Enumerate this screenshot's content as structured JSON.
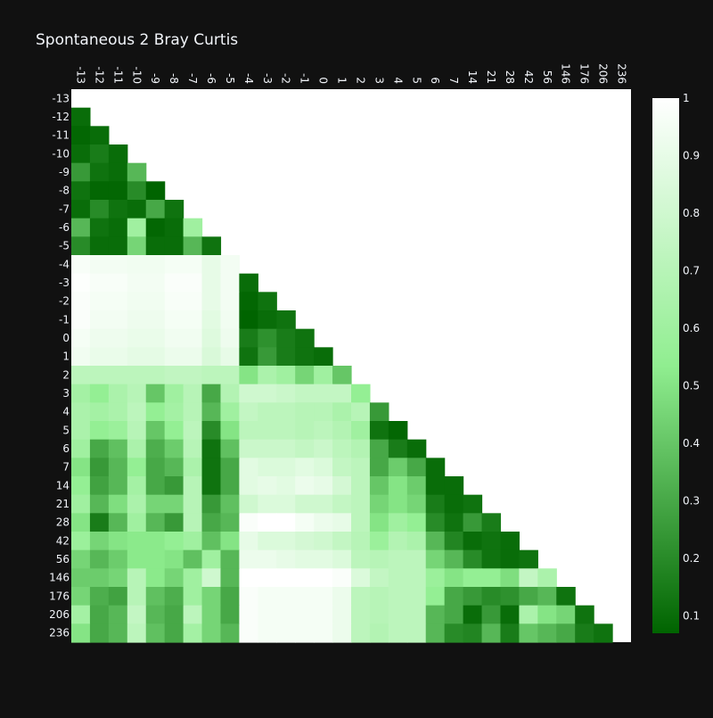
{
  "chart_data": {
    "type": "heatmap",
    "title": "Spontaneous 2 Bray Curtis",
    "labels": [
      "-13",
      "-12",
      "-11",
      "-10",
      "-9",
      "-8",
      "-7",
      "-6",
      "-5",
      "-4",
      "-3",
      "-2",
      "-1",
      "0",
      "1",
      "2",
      "3",
      "4",
      "5",
      "6",
      "7",
      "14",
      "21",
      "28",
      "42",
      "56",
      "146",
      "176",
      "206",
      "236"
    ],
    "colorscale": {
      "min": 0.07,
      "max": 1,
      "stops": [
        [
          0,
          "#006400"
        ],
        [
          0.5,
          "#90EE90"
        ],
        [
          1,
          "#FFFFFF"
        ]
      ],
      "ticks": [
        0.1,
        0.2,
        0.3,
        0.4,
        0.5,
        0.6,
        0.7,
        0.8,
        0.9,
        1
      ]
    },
    "rows": [
      [],
      [
        0.1
      ],
      [
        0.08,
        0.1
      ],
      [
        0.1,
        0.15,
        0.1
      ],
      [
        0.25,
        0.12,
        0.1,
        0.35
      ],
      [
        0.12,
        0.08,
        0.08,
        0.2,
        0.07
      ],
      [
        0.1,
        0.2,
        0.12,
        0.1,
        0.3,
        0.12
      ],
      [
        0.35,
        0.12,
        0.1,
        0.6,
        0.08,
        0.1,
        0.6
      ],
      [
        0.2,
        0.1,
        0.1,
        0.45,
        0.1,
        0.1,
        0.35,
        0.12
      ],
      [
        0.97,
        0.95,
        0.95,
        0.94,
        0.94,
        0.96,
        0.96,
        0.9,
        0.95
      ],
      [
        0.99,
        0.97,
        0.97,
        0.95,
        0.95,
        0.98,
        0.98,
        0.9,
        0.95,
        0.1
      ],
      [
        0.98,
        0.96,
        0.96,
        0.94,
        0.94,
        0.97,
        0.97,
        0.9,
        0.95,
        0.08,
        0.12
      ],
      [
        0.98,
        0.95,
        0.95,
        0.93,
        0.93,
        0.96,
        0.96,
        0.88,
        0.94,
        0.07,
        0.1,
        0.12
      ],
      [
        0.96,
        0.93,
        0.93,
        0.91,
        0.91,
        0.94,
        0.94,
        0.86,
        0.93,
        0.15,
        0.22,
        0.15,
        0.12
      ],
      [
        0.94,
        0.91,
        0.91,
        0.89,
        0.89,
        0.92,
        0.92,
        0.84,
        0.9,
        0.12,
        0.25,
        0.15,
        0.12,
        0.1
      ],
      [
        0.72,
        0.72,
        0.72,
        0.72,
        0.72,
        0.74,
        0.74,
        0.72,
        0.72,
        0.5,
        0.65,
        0.6,
        0.45,
        0.6,
        0.4
      ],
      [
        0.62,
        0.55,
        0.65,
        0.7,
        0.4,
        0.6,
        0.7,
        0.3,
        0.68,
        0.8,
        0.8,
        0.78,
        0.75,
        0.75,
        0.75,
        0.55
      ],
      [
        0.65,
        0.62,
        0.65,
        0.72,
        0.55,
        0.62,
        0.7,
        0.35,
        0.6,
        0.75,
        0.72,
        0.72,
        0.7,
        0.7,
        0.65,
        0.7,
        0.25
      ],
      [
        0.65,
        0.55,
        0.58,
        0.7,
        0.4,
        0.55,
        0.72,
        0.2,
        0.5,
        0.72,
        0.72,
        0.72,
        0.7,
        0.72,
        0.68,
        0.6,
        0.12,
        0.08
      ],
      [
        0.6,
        0.3,
        0.38,
        0.65,
        0.32,
        0.42,
        0.7,
        0.12,
        0.38,
        0.78,
        0.78,
        0.78,
        0.75,
        0.78,
        0.72,
        0.68,
        0.3,
        0.15,
        0.1
      ],
      [
        0.5,
        0.25,
        0.35,
        0.55,
        0.3,
        0.35,
        0.65,
        0.12,
        0.3,
        0.88,
        0.85,
        0.85,
        0.88,
        0.85,
        0.75,
        0.72,
        0.3,
        0.42,
        0.3,
        0.1
      ],
      [
        0.55,
        0.28,
        0.35,
        0.62,
        0.3,
        0.25,
        0.7,
        0.12,
        0.3,
        0.88,
        0.9,
        0.88,
        0.92,
        0.9,
        0.82,
        0.72,
        0.4,
        0.5,
        0.42,
        0.1,
        0.1
      ],
      [
        0.6,
        0.35,
        0.48,
        0.65,
        0.45,
        0.45,
        0.7,
        0.25,
        0.38,
        0.8,
        0.85,
        0.85,
        0.8,
        0.8,
        0.75,
        0.72,
        0.45,
        0.5,
        0.45,
        0.15,
        0.1,
        0.12
      ],
      [
        0.5,
        0.15,
        0.35,
        0.6,
        0.35,
        0.25,
        0.7,
        0.3,
        0.35,
        0.98,
        1.0,
        1.0,
        0.96,
        0.92,
        0.9,
        0.72,
        0.5,
        0.6,
        0.55,
        0.2,
        0.12,
        0.25,
        0.15
      ],
      [
        0.58,
        0.45,
        0.5,
        0.52,
        0.52,
        0.55,
        0.6,
        0.38,
        0.5,
        0.9,
        0.85,
        0.85,
        0.82,
        0.8,
        0.75,
        0.7,
        0.58,
        0.68,
        0.65,
        0.35,
        0.18,
        0.1,
        0.12,
        0.1
      ],
      [
        0.45,
        0.35,
        0.42,
        0.52,
        0.52,
        0.5,
        0.38,
        0.6,
        0.35,
        0.92,
        0.92,
        0.9,
        0.88,
        0.88,
        0.85,
        0.72,
        0.7,
        0.72,
        0.72,
        0.45,
        0.35,
        0.2,
        0.12,
        0.1,
        0.12
      ],
      [
        0.42,
        0.42,
        0.45,
        0.7,
        0.52,
        0.45,
        0.6,
        0.8,
        0.35,
        1.0,
        1.0,
        1.0,
        1.0,
        1.0,
        0.98,
        0.85,
        0.75,
        0.72,
        0.72,
        0.58,
        0.5,
        0.55,
        0.55,
        0.48,
        0.75,
        0.65
      ],
      [
        0.45,
        0.32,
        0.28,
        0.7,
        0.38,
        0.32,
        0.6,
        0.45,
        0.3,
        0.98,
        0.96,
        0.96,
        0.96,
        0.96,
        0.92,
        0.72,
        0.7,
        0.72,
        0.72,
        0.55,
        0.3,
        0.25,
        0.2,
        0.22,
        0.3,
        0.35,
        0.12
      ],
      [
        0.62,
        0.3,
        0.35,
        0.75,
        0.35,
        0.3,
        0.72,
        0.45,
        0.3,
        0.98,
        0.96,
        0.96,
        0.96,
        0.96,
        0.92,
        0.72,
        0.7,
        0.72,
        0.72,
        0.35,
        0.3,
        0.1,
        0.25,
        0.1,
        0.65,
        0.5,
        0.45,
        0.12
      ],
      [
        0.5,
        0.3,
        0.35,
        0.72,
        0.38,
        0.3,
        0.62,
        0.45,
        0.35,
        0.98,
        0.96,
        0.96,
        0.96,
        0.96,
        0.92,
        0.72,
        0.68,
        0.72,
        0.72,
        0.35,
        0.2,
        0.18,
        0.35,
        0.15,
        0.4,
        0.35,
        0.3,
        0.15,
        0.12
      ]
    ]
  }
}
